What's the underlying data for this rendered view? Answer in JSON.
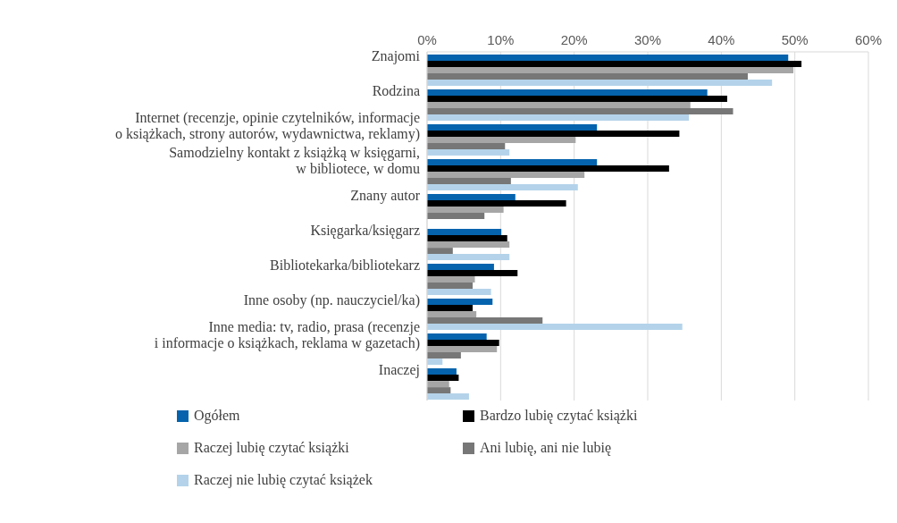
{
  "chart_data": {
    "type": "bar",
    "orientation": "horizontal",
    "categories": [
      "Znajomi",
      "Rodzina",
      "Internet (recenzje, opinie czytelników, informacje\no książkach, strony autorów, wydawnictwa, reklamy)",
      "Samodzielny kontakt z książką w księgarni,\nw bibliotece, w domu",
      "Znany autor",
      "Księgarka/księgarz",
      "Bibliotekarka/bibliotekarz",
      "Inne osoby (np. nauczyciel/ka)",
      "Inne media: tv, radio, prasa (recenzje\ni informacje o książkach, reklama w gazetach)",
      "Inaczej"
    ],
    "series": [
      {
        "name": "Ogółem",
        "color": "#0563ad",
        "values": [
          49.1,
          38.1,
          23.1,
          23.1,
          12.0,
          10.1,
          9.1,
          8.9,
          8.1,
          4.0
        ]
      },
      {
        "name": "Bardzo lubię czytać książki",
        "color": "#000000",
        "values": [
          50.9,
          40.8,
          34.3,
          32.9,
          18.9,
          10.9,
          12.3,
          6.2,
          9.8,
          4.3
        ]
      },
      {
        "name": "Raczej lubię czytać książki",
        "color": "#a6a6a6",
        "values": [
          49.8,
          35.8,
          20.2,
          21.4,
          10.4,
          11.2,
          6.5,
          6.7,
          9.5,
          3.0
        ]
      },
      {
        "name": "Ani lubię, ani nie lubię",
        "color": "#777777",
        "values": [
          43.6,
          41.6,
          10.6,
          11.4,
          7.8,
          3.5,
          6.2,
          15.7,
          4.6,
          3.2
        ]
      },
      {
        "name": "Raczej nie lubię czytać książek",
        "color": "#b4d3ea",
        "values": [
          46.9,
          35.6,
          11.2,
          20.5,
          0,
          11.2,
          8.7,
          34.7,
          2.1,
          5.7
        ]
      }
    ],
    "xlim": [
      0,
      60
    ],
    "xticks": [
      {
        "value": 0,
        "label": "0%"
      },
      {
        "value": 10,
        "label": "10%"
      },
      {
        "value": 20,
        "label": "20%"
      },
      {
        "value": 30,
        "label": "30%"
      },
      {
        "value": 40,
        "label": "40%"
      },
      {
        "value": 50,
        "label": "50%"
      },
      {
        "value": 60,
        "label": "60%"
      }
    ],
    "grid": "x",
    "legend": "bottom"
  }
}
